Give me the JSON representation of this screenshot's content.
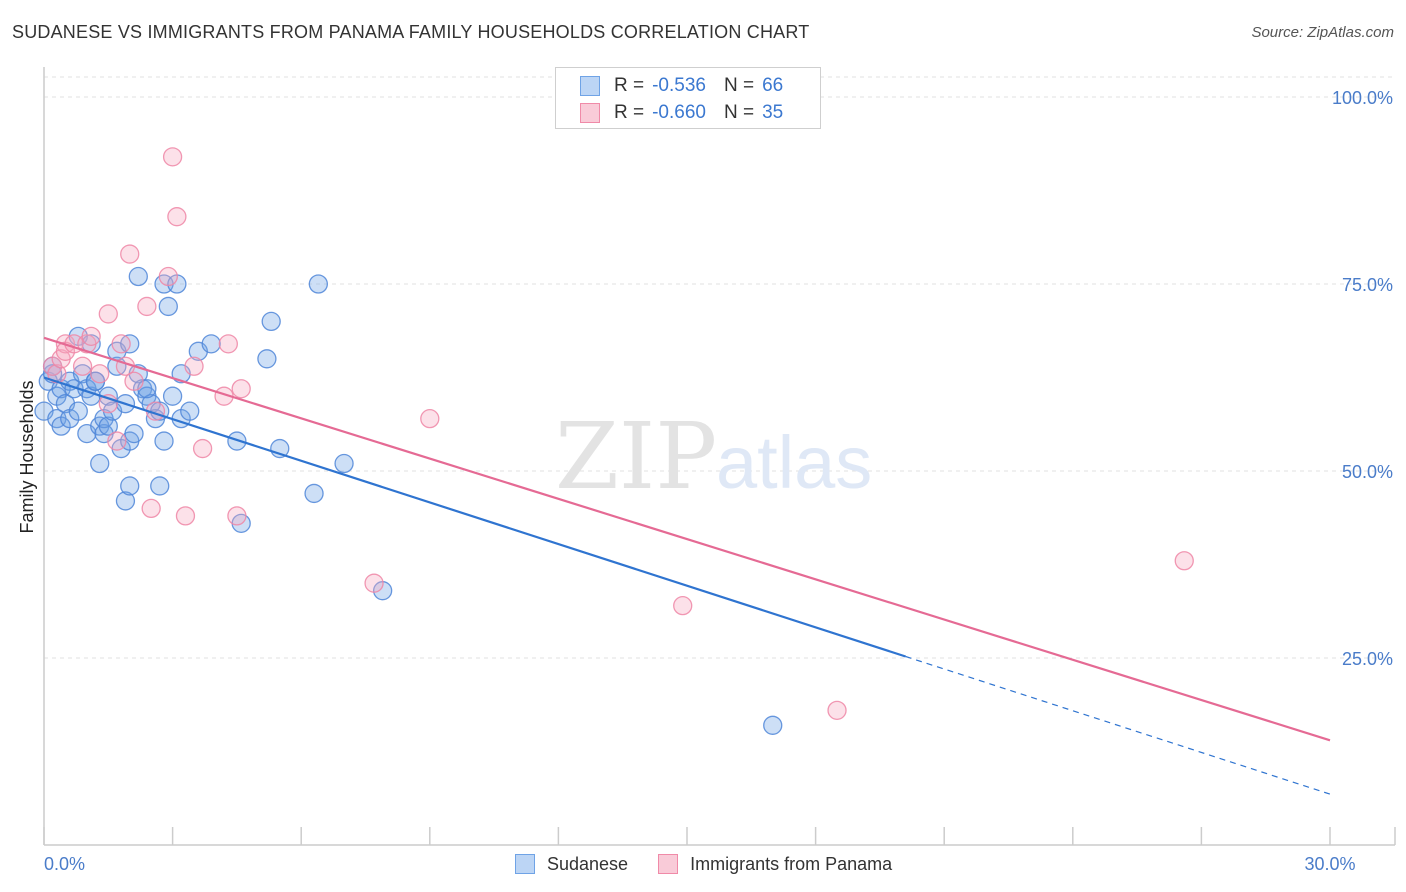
{
  "title": "SUDANESE VS IMMIGRANTS FROM PANAMA FAMILY HOUSEHOLDS CORRELATION CHART",
  "source": "Source: ZipAtlas.com",
  "watermark": {
    "zip": "ZIP",
    "atlas": "atlas"
  },
  "legend": {
    "r_label": "R =",
    "n_label": "N =",
    "rows": [
      {
        "r": "-0.536",
        "n": "66",
        "color": "#6fa3e6"
      },
      {
        "r": "-0.660",
        "n": "35",
        "color": "#f08aa8"
      }
    ]
  },
  "chart_data": {
    "type": "scatter",
    "title": "SUDANESE VS IMMIGRANTS FROM PANAMA FAMILY HOUSEHOLDS CORRELATION CHART",
    "xlabel": "",
    "ylabel": "Family Households",
    "xlim": [
      0,
      30
    ],
    "ylim": [
      0,
      105
    ],
    "x_tick_labels": [
      {
        "x": 0,
        "label": "0.0%"
      },
      {
        "x": 30,
        "label": "30.0%"
      }
    ],
    "y_tick_labels": [
      {
        "y": 25,
        "label": "25.0%"
      },
      {
        "y": 50,
        "label": "50.0%"
      },
      {
        "y": 75,
        "label": "75.0%"
      },
      {
        "y": 100,
        "label": "100.0%"
      }
    ],
    "grid": true,
    "legend_position": "bottom",
    "series": [
      {
        "name": "Sudanese",
        "color": "#6fa3e6",
        "stroke": "#4f86d8",
        "trend_color": "#2f74d0",
        "trend": {
          "x0": 0,
          "y0": 62.5,
          "x1": 20.1,
          "y1": 25.2,
          "dash_to_x": 30,
          "dash_to_y": 6.8
        },
        "points": [
          [
            0.0,
            58
          ],
          [
            0.1,
            62
          ],
          [
            0.2,
            63
          ],
          [
            0.3,
            60
          ],
          [
            0.3,
            57
          ],
          [
            0.4,
            61
          ],
          [
            0.4,
            56
          ],
          [
            0.5,
            59
          ],
          [
            0.6,
            62
          ],
          [
            0.6,
            57
          ],
          [
            0.7,
            61
          ],
          [
            0.8,
            58
          ],
          [
            0.8,
            68
          ],
          [
            0.9,
            63
          ],
          [
            1.0,
            55
          ],
          [
            1.0,
            61
          ],
          [
            1.1,
            67
          ],
          [
            1.1,
            60
          ],
          [
            1.2,
            62
          ],
          [
            1.3,
            56
          ],
          [
            1.3,
            51
          ],
          [
            1.4,
            55
          ],
          [
            1.4,
            57
          ],
          [
            1.5,
            56
          ],
          [
            1.5,
            60
          ],
          [
            1.6,
            58
          ],
          [
            1.7,
            64
          ],
          [
            1.7,
            66
          ],
          [
            1.8,
            53
          ],
          [
            1.9,
            46
          ],
          [
            1.9,
            59
          ],
          [
            2.0,
            54
          ],
          [
            2.0,
            67
          ],
          [
            2.1,
            55
          ],
          [
            2.0,
            48
          ],
          [
            2.2,
            76
          ],
          [
            2.2,
            63
          ],
          [
            2.3,
            61
          ],
          [
            2.4,
            60
          ],
          [
            2.5,
            59
          ],
          [
            2.6,
            57
          ],
          [
            2.7,
            48
          ],
          [
            2.7,
            58
          ],
          [
            2.8,
            75
          ],
          [
            2.9,
            72
          ],
          [
            2.8,
            54
          ],
          [
            3.0,
            60
          ],
          [
            3.1,
            75
          ],
          [
            3.2,
            57
          ],
          [
            3.2,
            63
          ],
          [
            3.4,
            58
          ],
          [
            3.6,
            66
          ],
          [
            3.9,
            67
          ],
          [
            4.5,
            54
          ],
          [
            4.6,
            43
          ],
          [
            5.2,
            65
          ],
          [
            5.3,
            70
          ],
          [
            5.5,
            53
          ],
          [
            6.3,
            47
          ],
          [
            6.4,
            75
          ],
          [
            7.0,
            51
          ],
          [
            7.9,
            34
          ],
          [
            17.0,
            16
          ],
          [
            0.2,
            64
          ],
          [
            1.2,
            62
          ],
          [
            2.4,
            61
          ]
        ]
      },
      {
        "name": "Immigrants from Panama",
        "color": "#f5aac0",
        "stroke": "#ee86a6",
        "trend_color": "#e56a94",
        "trend": {
          "x0": 0,
          "y0": 67.8,
          "x1": 30,
          "y1": 14.0
        },
        "points": [
          [
            0.2,
            64
          ],
          [
            0.3,
            63
          ],
          [
            0.4,
            65
          ],
          [
            0.5,
            67
          ],
          [
            0.5,
            66
          ],
          [
            0.7,
            67
          ],
          [
            0.9,
            64
          ],
          [
            1.0,
            67
          ],
          [
            1.1,
            68
          ],
          [
            1.3,
            63
          ],
          [
            1.5,
            59
          ],
          [
            1.5,
            71
          ],
          [
            1.7,
            54
          ],
          [
            1.8,
            67
          ],
          [
            1.9,
            64
          ],
          [
            2.0,
            79
          ],
          [
            2.1,
            62
          ],
          [
            2.4,
            72
          ],
          [
            2.5,
            45
          ],
          [
            2.6,
            58
          ],
          [
            2.9,
            76
          ],
          [
            3.0,
            92
          ],
          [
            3.1,
            84
          ],
          [
            3.3,
            44
          ],
          [
            3.5,
            64
          ],
          [
            3.7,
            53
          ],
          [
            4.2,
            60
          ],
          [
            4.3,
            67
          ],
          [
            4.5,
            44
          ],
          [
            4.6,
            61
          ],
          [
            7.7,
            35
          ],
          [
            9.0,
            57
          ],
          [
            14.9,
            32
          ],
          [
            18.5,
            18
          ],
          [
            26.6,
            38
          ]
        ]
      }
    ]
  }
}
